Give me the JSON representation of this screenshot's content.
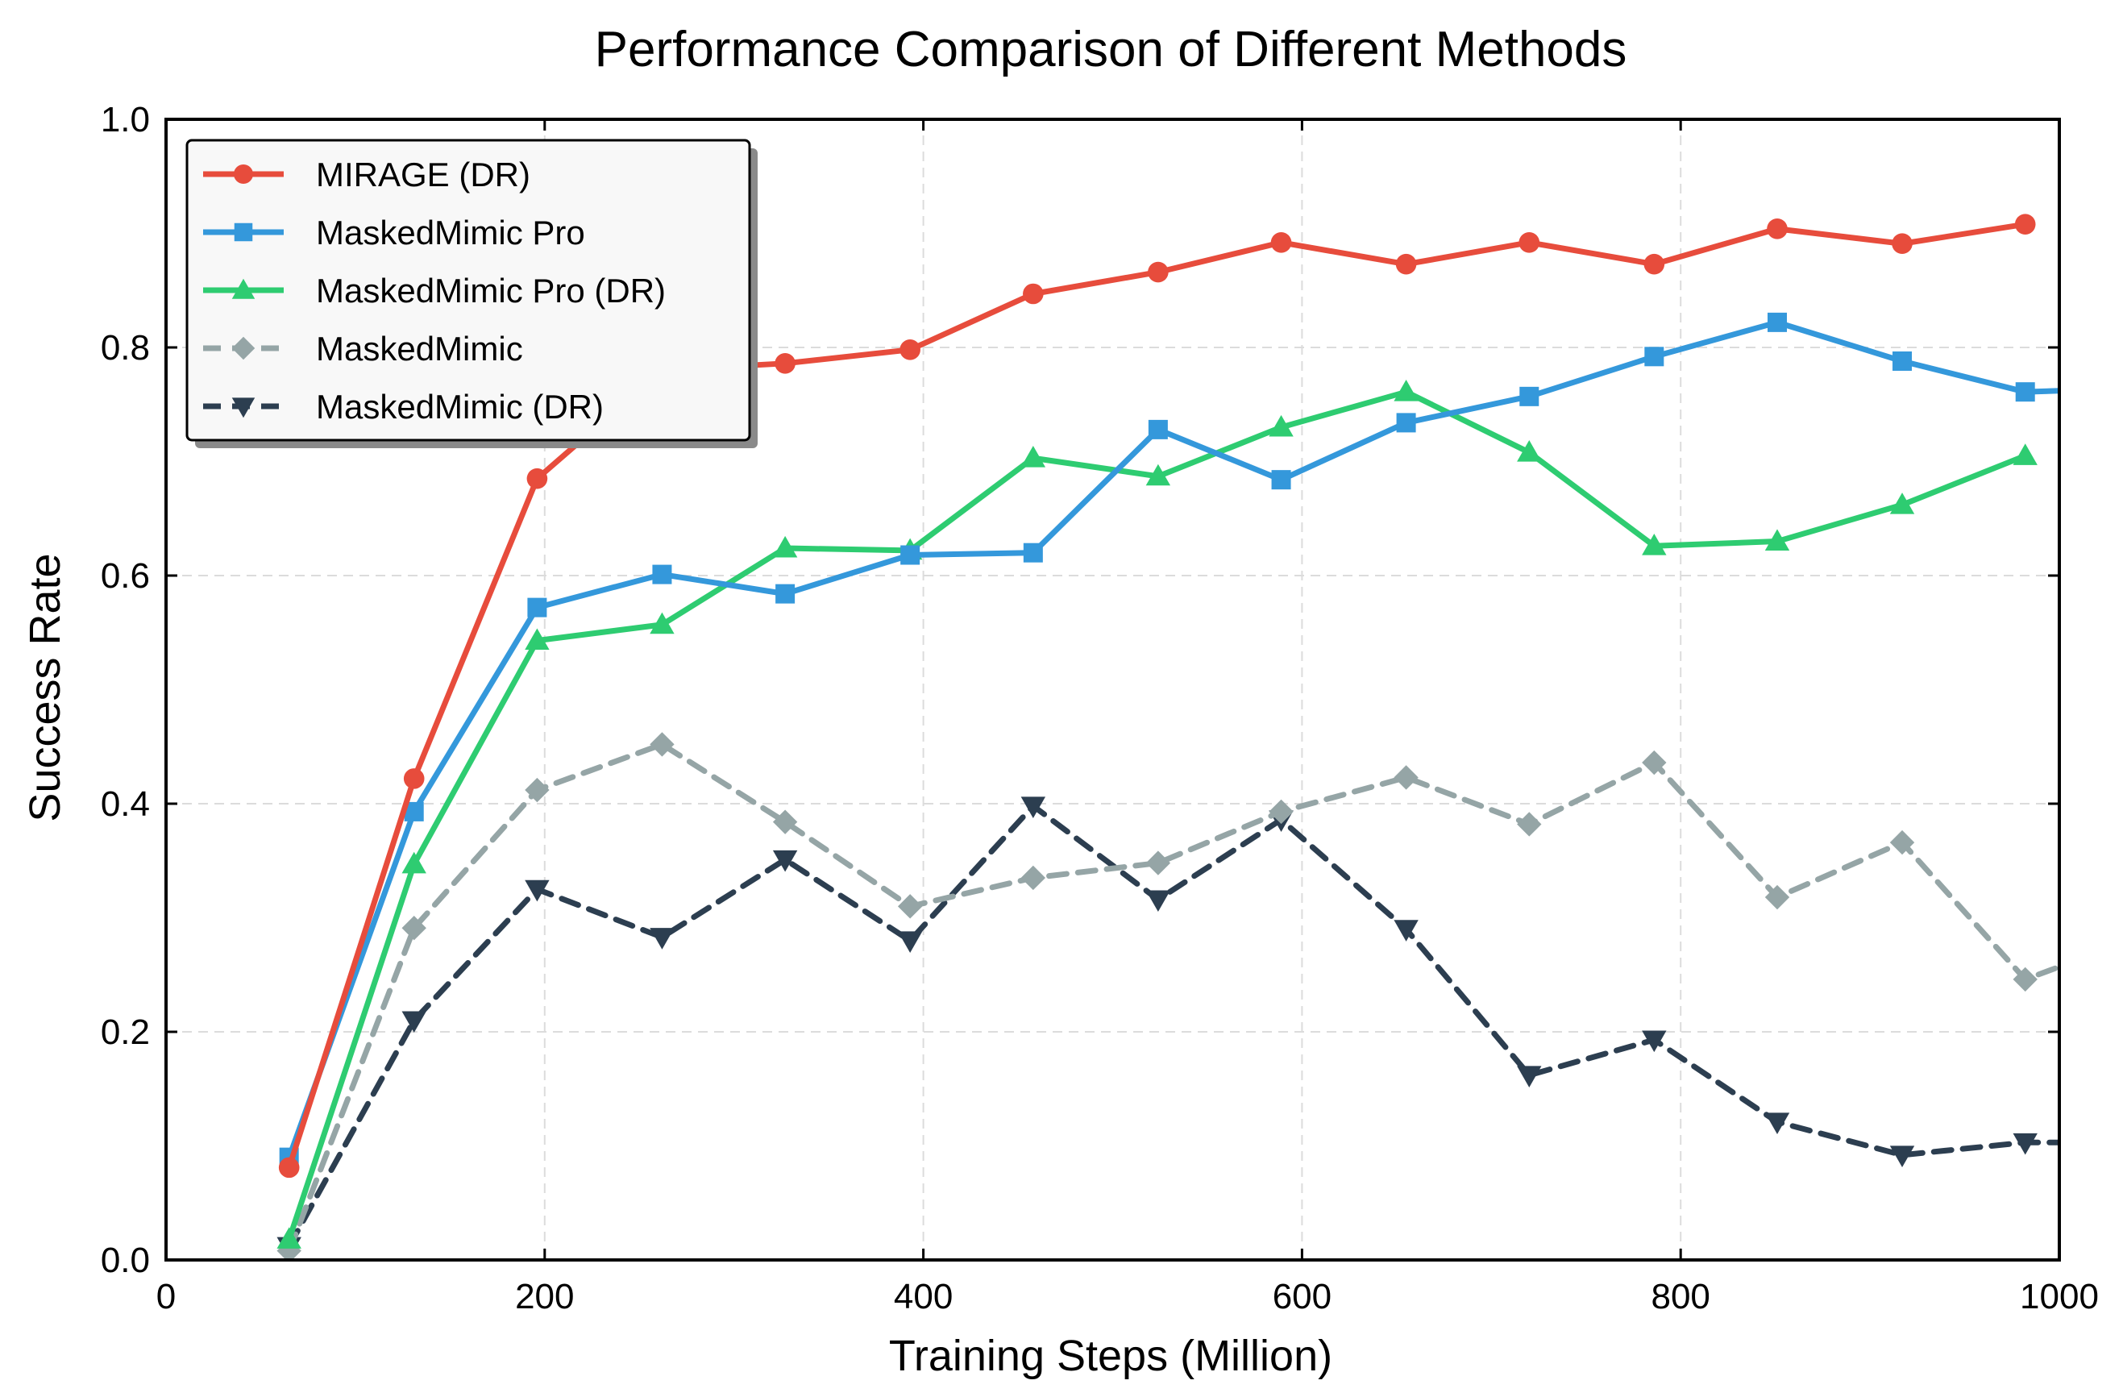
{
  "chart_data": {
    "type": "line",
    "title": "Performance Comparison of Different Methods",
    "xlabel": "Training Steps (Million)",
    "ylabel": "Success Rate",
    "xlim": [
      0,
      1000
    ],
    "ylim": [
      0.0,
      1.0
    ],
    "xticks": [
      0,
      200,
      400,
      600,
      800,
      1000
    ],
    "xtick_labels": [
      "0",
      "200",
      "400",
      "600",
      "800",
      "1000"
    ],
    "yticks": [
      0.0,
      0.2,
      0.4,
      0.6,
      0.8,
      1.0
    ],
    "ytick_labels": [
      "0.0",
      "0.2",
      "0.4",
      "0.6",
      "0.8",
      "1.0"
    ],
    "grid": true,
    "legend_position": "top-left",
    "x": [
      65,
      131,
      196,
      262,
      327,
      393,
      458,
      524,
      589,
      655,
      720,
      786,
      851,
      917,
      982,
      1000
    ],
    "series": [
      {
        "name": "MIRAGE (DR)",
        "color": "#e74c3c",
        "marker": "circle",
        "dashed": false,
        "values": [
          0.081,
          0.422,
          0.685,
          0.78,
          0.786,
          0.798,
          0.847,
          0.866,
          0.892,
          0.873,
          0.892,
          0.873,
          0.904,
          0.891,
          0.908,
          null
        ]
      },
      {
        "name": "MaskedMimic Pro",
        "color": "#3498db",
        "marker": "square",
        "dashed": false,
        "values": [
          0.09,
          0.393,
          0.572,
          0.601,
          0.584,
          0.618,
          0.62,
          0.728,
          0.684,
          0.734,
          0.757,
          0.792,
          0.822,
          0.788,
          0.761,
          0.762
        ]
      },
      {
        "name": "MaskedMimic Pro (DR)",
        "color": "#2ecc71",
        "marker": "triangle-up",
        "dashed": false,
        "values": [
          0.018,
          0.347,
          0.543,
          0.557,
          0.624,
          0.622,
          0.703,
          0.687,
          0.73,
          0.761,
          0.708,
          0.626,
          0.63,
          0.662,
          0.705,
          null
        ]
      },
      {
        "name": "MaskedMimic",
        "color": "#95a5a6",
        "marker": "diamond",
        "dashed": true,
        "values": [
          0.008,
          0.291,
          0.412,
          0.452,
          0.384,
          0.31,
          0.335,
          0.348,
          0.393,
          0.423,
          0.382,
          0.436,
          0.318,
          0.366,
          0.246,
          0.257
        ]
      },
      {
        "name": "MaskedMimic (DR)",
        "color": "#2c3e50",
        "marker": "triangle-down",
        "dashed": true,
        "values": [
          0.012,
          0.21,
          0.325,
          0.283,
          0.351,
          0.28,
          0.398,
          0.316,
          0.386,
          0.29,
          0.162,
          0.193,
          0.121,
          0.092,
          0.103,
          0.103
        ]
      }
    ]
  }
}
